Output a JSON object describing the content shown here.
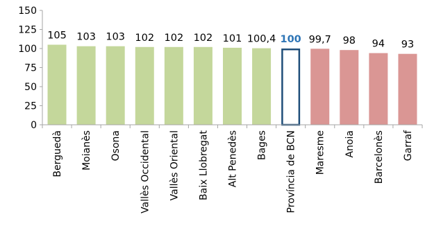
{
  "chart_data": {
    "type": "bar",
    "categories": [
      "Berguedà",
      "Moianès",
      "Osona",
      "Vallès Occidental",
      "Vallès Oriental",
      "Baix Llobregat",
      "Alt Penedès",
      "Bages",
      "Província de BCN",
      "Maresme",
      "Anoia",
      "Barcelonès",
      "Garraf"
    ],
    "values": [
      105,
      103,
      103,
      102,
      102,
      102,
      101,
      100.4,
      100,
      99.7,
      98,
      94,
      93
    ],
    "data_labels": [
      "105",
      "103",
      "103",
      "102",
      "102",
      "102",
      "101",
      "100,4",
      "100",
      "99,7",
      "98",
      "94",
      "93"
    ],
    "bar_colors": [
      "#c4d79b",
      "#c4d79b",
      "#c4d79b",
      "#c4d79b",
      "#c4d79b",
      "#c4d79b",
      "#c4d79b",
      "#c4d79b",
      "#ffffff",
      "#da9694",
      "#da9694",
      "#da9694",
      "#da9694"
    ],
    "highlight_index": 8,
    "highlight_outline_color": "#1f4e79",
    "highlight_label_color": "#2e75b6",
    "ylim": [
      0,
      150
    ],
    "yticks": [
      0,
      25,
      50,
      75,
      100,
      125,
      150
    ],
    "grid": false,
    "legend": "none",
    "title": "",
    "xlabel": "",
    "ylabel": ""
  }
}
